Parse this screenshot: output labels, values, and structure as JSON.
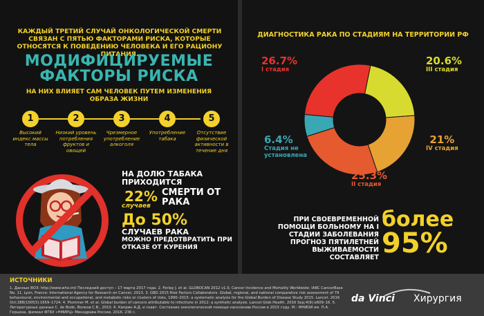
{
  "left": {
    "intro": "КАЖДЫЙ ТРЕТИЙ СЛУЧАЙ ОНКОЛОГИЧЕСКОЙ СМЕРТИ СВЯЗАН С ПЯТЬЮ ФАКТОРАМИ РИСКА, КОТОРЫЕ ОТНОСЯТСЯ К ПОВЕДЕНИЮ ЧЕЛОВЕКА И ЕГО РАЦИОНУ ПИТАНИЯ.",
    "title_line1": "МОДИФИЦИРУЕМЫЕ",
    "title_line2": "ФАКТОРЫ РИСКА",
    "subtitle": "НА НИХ ВЛИЯЕТ САМ ЧЕЛОВЕК ПУТЕМ ИЗМЕНЕНИЯ ОБРАЗА ЖИЗНИ",
    "factors": [
      {
        "num": "1",
        "label": "Высокий индекс массы тела"
      },
      {
        "num": "2",
        "label": "Низкий уровень потребления фруктов и овощей"
      },
      {
        "num": "3",
        "label": "Чрезмерное употребление алкоголя"
      },
      {
        "num": "4",
        "label": "Употребление табака"
      },
      {
        "num": "5",
        "label": "Отсутствие физической активности в течение дня"
      }
    ],
    "tobacco": {
      "line1": "НА ДОЛЮ ТАБАКА ПРИХОДИТСЯ",
      "pct": "22%",
      "cases": "случаев",
      "death": "СМЕРТИ ОТ РАКА",
      "pct2": "До 50%",
      "line3": "СЛУЧАЕВ РАКА",
      "line4": "МОЖНО ПРЕДОТВРАТИТЬ ПРИ ОТКАЗЕ ОТ КУРЕНИЯ"
    }
  },
  "right": {
    "chart_title": "ДИАГНОСТИКА РАКА ПО СТАДИЯМ НА ТЕРРИТОРИИ РФ",
    "bottom_text": "ПРИ СВОЕВРЕМЕННОЙ ПОМОЩИ БОЛЬНОМУ НА I СТАДИИ ЗАБОЛЕВАНИЯ ПРОГНОЗ ПЯТИЛЕТНЕЙ ВЫЖИВАЕМОСТИ СОСТАВЛЯЕТ",
    "bolee": "более",
    "bolee_pct": "95%"
  },
  "chart_data": {
    "type": "pie",
    "title": "ДИАГНОСТИКА РАКА ПО СТАДИЯМ НА ТЕРРИТОРИИ РФ",
    "slices": [
      {
        "label": "I стадия",
        "value": 26.7,
        "display": "26.7%",
        "color": "#e8332c"
      },
      {
        "label": "III стадия",
        "value": 20.6,
        "display": "20.6%",
        "color": "#d8db2f"
      },
      {
        "label": "IV стадия",
        "value": 21,
        "display": "21%",
        "color": "#e7a234"
      },
      {
        "label": "II стадия",
        "value": 25.3,
        "display": "25.3%",
        "color": "#e55a2e"
      },
      {
        "label": "Стадия не установлена",
        "value": 6.4,
        "display": "6.4%",
        "color": "#3aa7b4"
      }
    ]
  },
  "colors": {
    "accent": "#f2d12b",
    "teal": "#39b6b0",
    "red": "#e8332c"
  },
  "footer": {
    "sources_title": "ИСТОЧНИКИ",
    "sources": "1. Данные ВОЗ: http://www.who.int/ Последний доступ – 17 марта 2017 года. 2. Ferlay J. et al. GLOBOCAN 2012 v1.0, Cancer Incidence and Mortality Worldwide: IARC CancerBase No. 11. Lyon, France: International Agency for Research on Cancer; 2013. 3. GBD 2015 Risk Factors Collaborators. Global, regional, and national comparative risk assessment of 79 behavioural, environmental and occupational, and metabolic risks or clusters of risks, 1990–2015: a systematic analysis for the Global Burden of Disease Study 2015. Lancet. 2016 Oct;388(10053):1659–1724. 4. Plummer M. et al. Global burden of cancers attributable to infections in 2012: a synthetic analysis. Lancet Glob Health. 2016 Sep;4(9):e609–16. 5. Литературные данные С. de Bode, Волков С.В., 2010. 6. Каприн А.Д. и соавт. Состояние онкологической помощи населению России в 2015 году. М.: МНИОИ им. П.А. Герцена, филиал ФГБУ «НМИРЦ» Минздрава России, 2016. 236 с.",
    "brand_dv": "da Vinci",
    "brand_xr": "Хирургия"
  }
}
